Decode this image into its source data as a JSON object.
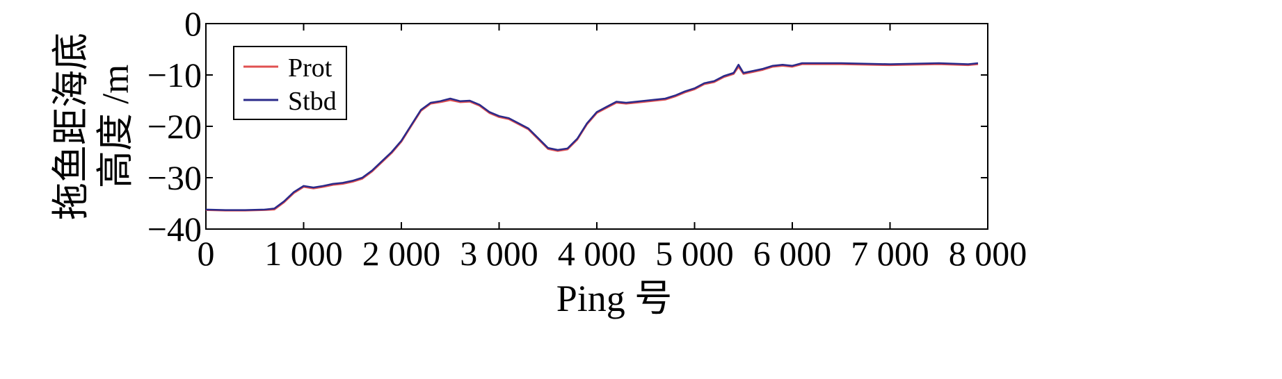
{
  "chart_data": {
    "type": "line",
    "xlabel": "Ping 号",
    "ylabel_lines": [
      "拖鱼距海底",
      "高度 /m"
    ],
    "xlim": [
      0,
      8000
    ],
    "ylim": [
      -40,
      0
    ],
    "x_ticks": [
      0,
      1000,
      2000,
      3000,
      4000,
      5000,
      6000,
      7000,
      8000
    ],
    "x_tick_labels": [
      "0",
      "1 000",
      "2 000",
      "3 000",
      "4 000",
      "5 000",
      "6 000",
      "7 000",
      "8 000"
    ],
    "y_ticks": [
      0,
      -10,
      -20,
      -30,
      -40
    ],
    "y_tick_labels": [
      "0",
      "−10",
      "−20",
      "−30",
      "−40"
    ],
    "grid": false,
    "legend_position": "top-left",
    "series": [
      {
        "name": "Prot",
        "color": "#e05050",
        "points": [
          [
            0,
            -36.3
          ],
          [
            200,
            -36.4
          ],
          [
            400,
            -36.4
          ],
          [
            600,
            -36.3
          ],
          [
            700,
            -36.2
          ],
          [
            800,
            -34.8
          ],
          [
            900,
            -33.0
          ],
          [
            1000,
            -31.8
          ],
          [
            1100,
            -32.1
          ],
          [
            1200,
            -31.8
          ],
          [
            1300,
            -31.4
          ],
          [
            1400,
            -31.2
          ],
          [
            1500,
            -30.8
          ],
          [
            1600,
            -30.2
          ],
          [
            1700,
            -28.8
          ],
          [
            1800,
            -27.0
          ],
          [
            1900,
            -25.2
          ],
          [
            2000,
            -23.0
          ],
          [
            2100,
            -20.0
          ],
          [
            2200,
            -17.0
          ],
          [
            2300,
            -15.6
          ],
          [
            2400,
            -15.3
          ],
          [
            2500,
            -14.9
          ],
          [
            2600,
            -15.3
          ],
          [
            2700,
            -15.2
          ],
          [
            2800,
            -16.0
          ],
          [
            2900,
            -17.4
          ],
          [
            3000,
            -18.2
          ],
          [
            3100,
            -18.6
          ],
          [
            3200,
            -19.6
          ],
          [
            3300,
            -20.6
          ],
          [
            3400,
            -22.5
          ],
          [
            3500,
            -24.4
          ],
          [
            3600,
            -24.8
          ],
          [
            3700,
            -24.5
          ],
          [
            3800,
            -22.6
          ],
          [
            3900,
            -19.6
          ],
          [
            4000,
            -17.4
          ],
          [
            4100,
            -16.4
          ],
          [
            4200,
            -15.4
          ],
          [
            4300,
            -15.6
          ],
          [
            4400,
            -15.4
          ],
          [
            4500,
            -15.2
          ],
          [
            4600,
            -15.0
          ],
          [
            4700,
            -14.8
          ],
          [
            4800,
            -14.2
          ],
          [
            4900,
            -13.4
          ],
          [
            5000,
            -12.8
          ],
          [
            5100,
            -11.8
          ],
          [
            5200,
            -11.4
          ],
          [
            5300,
            -10.4
          ],
          [
            5400,
            -9.8
          ],
          [
            5450,
            -8.4
          ],
          [
            5500,
            -9.8
          ],
          [
            5600,
            -9.4
          ],
          [
            5700,
            -9.0
          ],
          [
            5800,
            -8.4
          ],
          [
            5900,
            -8.2
          ],
          [
            6000,
            -8.4
          ],
          [
            6100,
            -7.9
          ],
          [
            6500,
            -7.9
          ],
          [
            7000,
            -8.1
          ],
          [
            7500,
            -7.9
          ],
          [
            7800,
            -8.1
          ],
          [
            7900,
            -7.9
          ]
        ]
      },
      {
        "name": "Stbd",
        "color": "#2a2a8a",
        "points": [
          [
            0,
            -36.2
          ],
          [
            200,
            -36.3
          ],
          [
            400,
            -36.3
          ],
          [
            600,
            -36.2
          ],
          [
            700,
            -36.0
          ],
          [
            800,
            -34.6
          ],
          [
            900,
            -32.8
          ],
          [
            1000,
            -31.6
          ],
          [
            1100,
            -31.9
          ],
          [
            1200,
            -31.6
          ],
          [
            1300,
            -31.2
          ],
          [
            1400,
            -31.0
          ],
          [
            1500,
            -30.6
          ],
          [
            1600,
            -30.0
          ],
          [
            1700,
            -28.6
          ],
          [
            1800,
            -26.8
          ],
          [
            1900,
            -25.0
          ],
          [
            2000,
            -22.8
          ],
          [
            2100,
            -19.8
          ],
          [
            2200,
            -16.8
          ],
          [
            2300,
            -15.4
          ],
          [
            2400,
            -15.1
          ],
          [
            2500,
            -14.6
          ],
          [
            2600,
            -15.1
          ],
          [
            2700,
            -15.0
          ],
          [
            2800,
            -15.8
          ],
          [
            2900,
            -17.2
          ],
          [
            3000,
            -18.0
          ],
          [
            3100,
            -18.4
          ],
          [
            3200,
            -19.4
          ],
          [
            3300,
            -20.4
          ],
          [
            3400,
            -22.3
          ],
          [
            3500,
            -24.2
          ],
          [
            3600,
            -24.6
          ],
          [
            3700,
            -24.3
          ],
          [
            3800,
            -22.4
          ],
          [
            3900,
            -19.4
          ],
          [
            4000,
            -17.2
          ],
          [
            4100,
            -16.2
          ],
          [
            4200,
            -15.2
          ],
          [
            4300,
            -15.4
          ],
          [
            4400,
            -15.2
          ],
          [
            4500,
            -15.0
          ],
          [
            4600,
            -14.8
          ],
          [
            4700,
            -14.6
          ],
          [
            4800,
            -14.0
          ],
          [
            4900,
            -13.2
          ],
          [
            5000,
            -12.6
          ],
          [
            5100,
            -11.6
          ],
          [
            5200,
            -11.2
          ],
          [
            5300,
            -10.2
          ],
          [
            5400,
            -9.6
          ],
          [
            5450,
            -8.0
          ],
          [
            5500,
            -9.6
          ],
          [
            5600,
            -9.2
          ],
          [
            5700,
            -8.8
          ],
          [
            5800,
            -8.2
          ],
          [
            5900,
            -8.0
          ],
          [
            6000,
            -8.2
          ],
          [
            6100,
            -7.7
          ],
          [
            6500,
            -7.7
          ],
          [
            7000,
            -7.9
          ],
          [
            7500,
            -7.7
          ],
          [
            7800,
            -7.9
          ],
          [
            7900,
            -7.7
          ]
        ]
      }
    ]
  }
}
